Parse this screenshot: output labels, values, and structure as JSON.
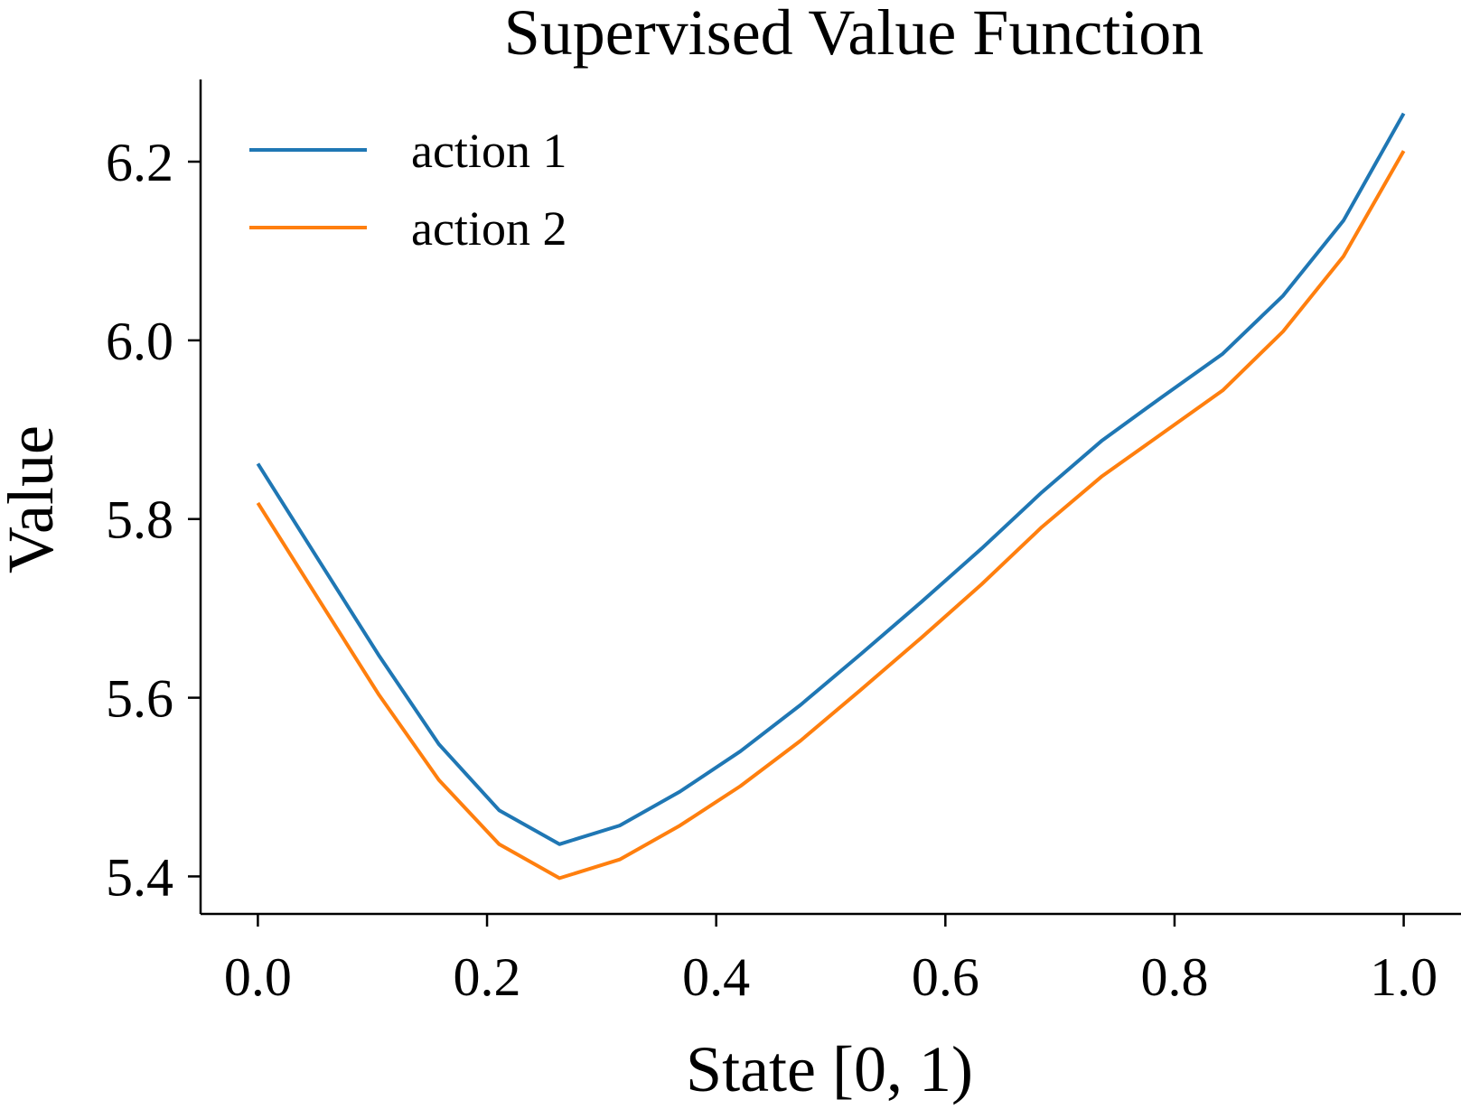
{
  "chart_data": {
    "type": "line",
    "title": "Supervised Value Function",
    "xlabel": "State [0, 1)",
    "ylabel": "Value",
    "xlim": [
      -0.05,
      1.05
    ],
    "ylim": [
      5.358,
      6.292
    ],
    "xticks": [
      0.0,
      0.2,
      0.4,
      0.6,
      0.8,
      1.0
    ],
    "xtick_labels": [
      "0.0",
      "0.2",
      "0.4",
      "0.6",
      "0.8",
      "1.0"
    ],
    "yticks": [
      5.4,
      5.6,
      5.8,
      6.0,
      6.2
    ],
    "ytick_labels": [
      "5.4",
      "5.6",
      "5.8",
      "6.0",
      "6.2"
    ],
    "legend_position": "top-left",
    "x": [
      0.0,
      0.0526,
      0.1053,
      0.1579,
      0.2105,
      0.2632,
      0.3158,
      0.3684,
      0.4211,
      0.4737,
      0.5263,
      0.5789,
      0.6316,
      0.6842,
      0.7368,
      0.7895,
      0.8421,
      0.8947,
      0.9474,
      1.0
    ],
    "series": [
      {
        "name": "action 1",
        "color": "#1f77b4",
        "values": [
          5.862,
          5.755,
          5.648,
          5.548,
          5.474,
          5.436,
          5.457,
          5.495,
          5.54,
          5.592,
          5.649,
          5.707,
          5.767,
          5.83,
          5.888,
          5.937,
          5.985,
          6.05,
          6.134,
          6.254
        ]
      },
      {
        "name": "action 2",
        "color": "#ff7f0e",
        "values": [
          5.818,
          5.711,
          5.604,
          5.508,
          5.436,
          5.398,
          5.419,
          5.457,
          5.501,
          5.552,
          5.609,
          5.667,
          5.727,
          5.791,
          5.848,
          5.896,
          5.944,
          6.01,
          6.094,
          6.212
        ]
      }
    ]
  }
}
